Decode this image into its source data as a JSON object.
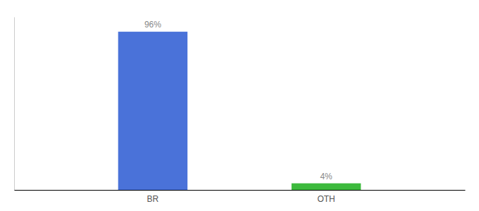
{
  "chart_data": {
    "type": "bar",
    "categories": [
      "BR",
      "OTH"
    ],
    "values": [
      96,
      4
    ],
    "value_labels": [
      "96%",
      "4%"
    ],
    "colors": [
      "#4a72d9",
      "#3dba3d"
    ],
    "ylim": [
      0,
      105
    ],
    "data_labels": true,
    "tick_labels": "x"
  }
}
